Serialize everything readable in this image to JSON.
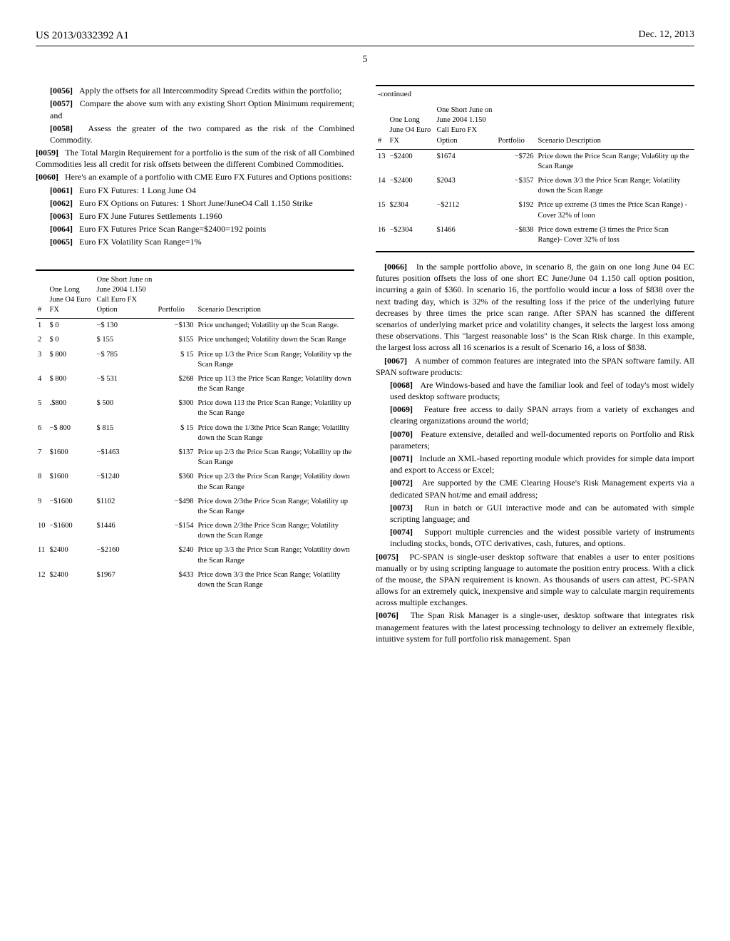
{
  "header": {
    "docnum": "US 2013/0332392 A1",
    "date": "Dec. 12, 2013",
    "pagenum": "5"
  },
  "left": {
    "p56": "Apply the offsets for all Intercommodity Spread Credits within the portfolio;",
    "p57": "Compare the above sum with any existing Short Option Minimum requirement; and",
    "p58": "Assess the greater of the two compared as the risk of the Combined Commodity.",
    "p59": "The Total Margin Requirement for a portfolio is the sum of the risk of all Combined Commodities less all credit for risk offsets between the different Combined Commodities.",
    "p60": "Here's an example of a portfolio with CME Euro FX Futures and Options positions:",
    "p61": "Euro FX Futures: 1 Long June O4",
    "p62": "Euro FX Options on Futures: 1 Short June/JuneO4 Call 1.150 Strike",
    "p63": "Euro FX June Futures Settlements 1.1960",
    "p64": "Euro FX Futures Price Scan Range=$2400=192 points",
    "p65": "Euro FX Volatility Scan Range=1%"
  },
  "table1": {
    "headers": {
      "h1": "#",
      "h2": "One Long June O4 Euro FX",
      "h3": "One Short June on June 2004 1.150 Call Euro FX Option",
      "h4": "Portfolio",
      "h5": "Scenario Description"
    },
    "rows": [
      {
        "n": "1",
        "a": "$     0",
        "b": "−$ 130",
        "c": "−$130",
        "d": "Price unchanged; Volatility up the Scan Range."
      },
      {
        "n": "2",
        "a": "$     0",
        "b": "$ 155",
        "c": "$155",
        "d": "Price unchanged; Volatility down the Scan Range"
      },
      {
        "n": "3",
        "a": "$ 800",
        "b": "−$ 785",
        "c": "$ 15",
        "d": "Price up 1/3 the Price Scan Range; Volatility vp the Scan Range"
      },
      {
        "n": "4",
        "a": "$ 800",
        "b": "−$ 531",
        "c": "$268",
        "d": "Price up 113 the Price Scan Range; Volatility down the Scan Range"
      },
      {
        "n": "5",
        "a": ".$800",
        "b": "$ 500",
        "c": "$300",
        "d": "Price down 113 the Price Scan Range; Volatility up the Scan Range"
      },
      {
        "n": "6",
        "a": "−$ 800",
        "b": "$ 815",
        "c": "$ 15",
        "d": "Price down the 1/3the Price Scan Range; Volatility down the Scan Range"
      },
      {
        "n": "7",
        "a": "$1600",
        "b": "−$1463",
        "c": "$137",
        "d": "Price up 2/3 the Price Scan Range; Volatility up the Scan Range"
      },
      {
        "n": "8",
        "a": "$1600",
        "b": "−$1240",
        "c": "$360",
        "d": "Price up 2/3 the Price Scan Range; Volatility down the Scan Range"
      },
      {
        "n": "9",
        "a": "−$1600",
        "b": "$1102",
        "c": "−$498",
        "d": "Price down 2/3the Price Scan Range; Volatility up the Scan Range"
      },
      {
        "n": "10",
        "a": "−$1600",
        "b": "$1446",
        "c": "−$154",
        "d": "Price down 2/3the Price Scan Range; Volatility down the Scan Range"
      },
      {
        "n": "11",
        "a": "$2400",
        "b": "−$2160",
        "c": "$240",
        "d": "Price up 3/3 the Price Scan Range; Volatility down the Scan Range"
      },
      {
        "n": "12",
        "a": "$2400",
        "b": "$1967",
        "c": "$433",
        "d": "Price down 3/3 the Price Scan Range; Volatility down the Scan Range"
      }
    ]
  },
  "table2": {
    "continued": "-continued",
    "headers": {
      "h1": "#",
      "h2": "One Long June O4 Euro FX",
      "h3": "One Short June on June 2004 1.150 Call Euro FX Option",
      "h4": "Portfolio",
      "h5": "Scenario Description"
    },
    "rows": [
      {
        "n": "13",
        "a": "−$2400",
        "b": "$1674",
        "c": "−$726",
        "d": "Price down the Price Scan Range; Vola6lity up the Scan Range"
      },
      {
        "n": "14",
        "a": "−$2400",
        "b": "$2043",
        "c": "−$357",
        "d": "Price down 3/3 the Price Scan Range; Volatility down the Scan Range"
      },
      {
        "n": "15",
        "a": "$2304",
        "b": "−$2112",
        "c": "$192",
        "d": "Price up extreme (3 times the Price Scan Range) - Cover 32% of loon"
      },
      {
        "n": "16",
        "a": "−$2304",
        "b": "$1466",
        "c": "−$838",
        "d": "Price down extreme (3 times the Price Scan Range)- Cover 32% of loss"
      }
    ]
  },
  "right": {
    "p66": "In the sample portfolio above, in scenario 8, the gain on one long June 04 EC futures position offsets the loss of one short EC June/June 04 1.150 call option position, incurring a gain of $360. In scenario 16, the portfolio would incur a loss of $838 over the next trading day, which is 32% of the resulting loss if the price of the underlying future decreases by three times the price scan range. After SPAN has scanned the different scenarios of underlying market price and volatility changes, it selects the largest loss among these observations. This \"largest reasonable loss\" is the Scan Risk charge. In this example, the largest loss across all 16 scenarios is a result of Scenario 16, a loss of $838.",
    "p67": "A number of common features are integrated into the SPAN software family. All SPAN software products:",
    "p68": "Are Windows-based and have the familiar look and feel of today's most widely used desktop software products;",
    "p69": "Feature free access to daily SPAN arrays from a variety of exchanges and clearing organizations around the world;",
    "p70": "Feature extensive, detailed and well-documented reports on Portfolio and Risk parameters;",
    "p71": "Include an XML-based reporting module which provides for simple data import and export to Access or Excel;",
    "p72": "Are supported by the CME Clearing House's Risk Management experts via a dedicated SPAN hot/me and email address;",
    "p73": "Run in batch or GUI interactive mode and can be automated with simple scripting language; and",
    "p74": "Support multiple currencies and the widest possible variety of instruments including stocks, bonds, OTC derivatives, cash, futures, and options.",
    "p75": "PC-SPAN is single-user desktop software that enables a user to enter positions manually or by using scripting language to automate the position entry process. With a click of the mouse, the SPAN requirement is known. As thousands of users can attest, PC-SPAN allows for an extremely quick, inexpensive and simple way to calculate margin requirements across multiple exchanges.",
    "p76": "The Span Risk Manager is a single-user, desktop software that integrates risk management features with the latest processing technology to deliver an extremely flexible, intuitive system for full portfolio risk management. Span"
  }
}
